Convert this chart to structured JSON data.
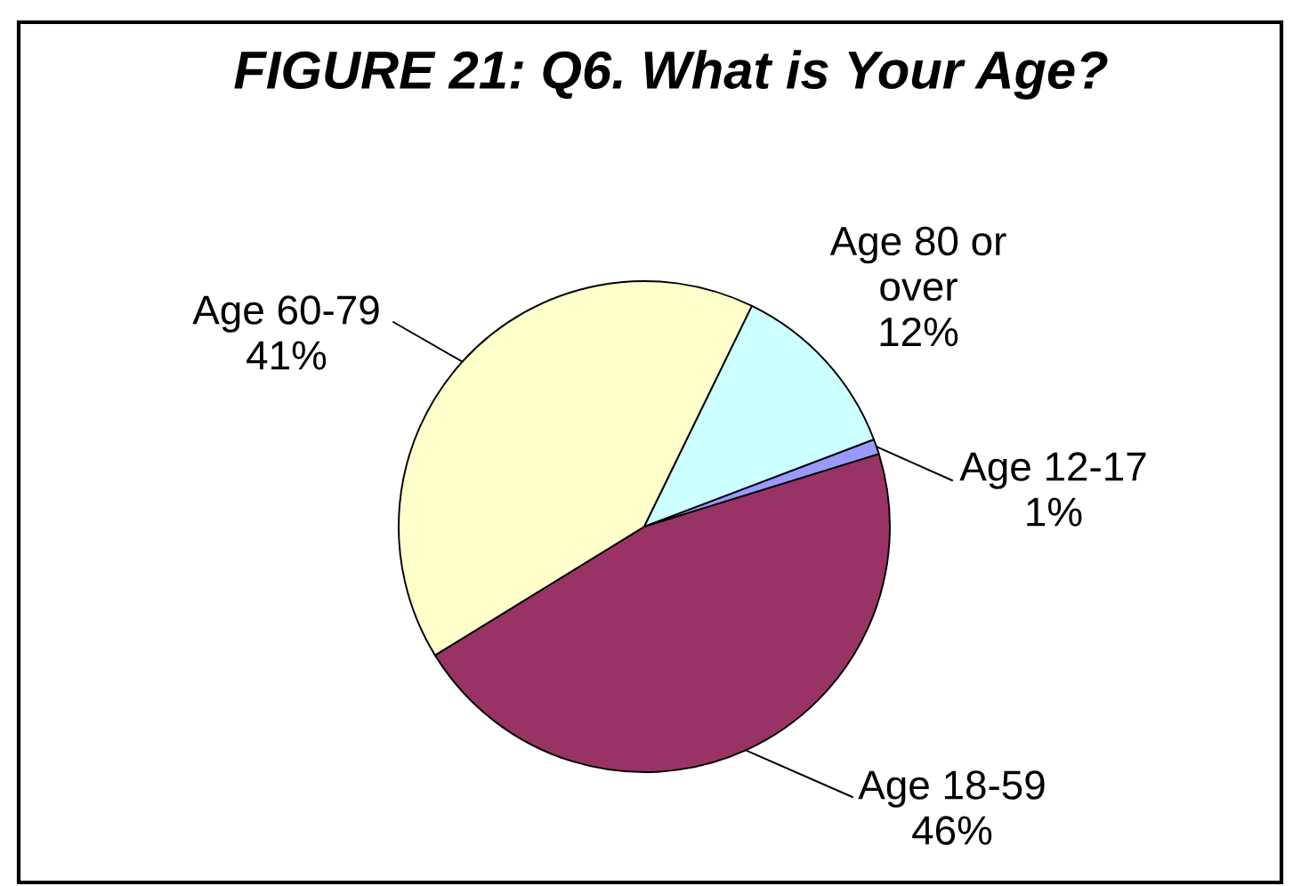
{
  "chart_data": {
    "type": "pie",
    "title": "FIGURE 21: Q6. What is Your Age?",
    "categories": [
      "Age 12-17",
      "Age 18-59",
      "Age 60-79",
      "Age 80 or over"
    ],
    "values": [
      1,
      46,
      41,
      12
    ],
    "value_labels": [
      "1%",
      "46%",
      "41%",
      "12%"
    ],
    "colors": [
      "#9999ff",
      "#993366",
      "#ffffcc",
      "#ccffff"
    ]
  }
}
